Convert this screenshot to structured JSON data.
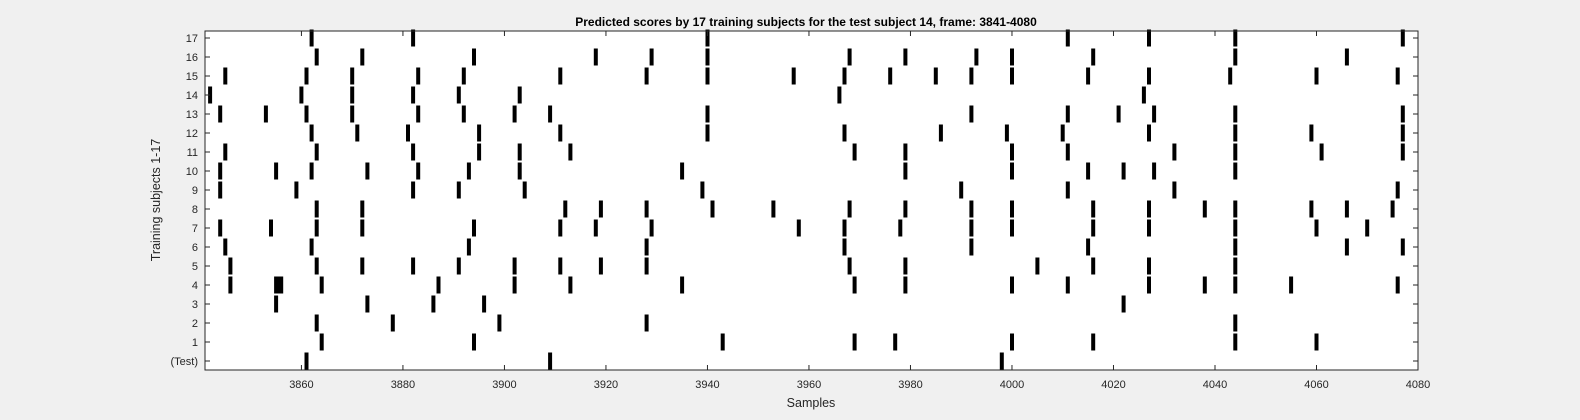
{
  "chart_data": {
    "type": "scatter",
    "marker": "vertical-bar",
    "title": "Predicted scores by 17 training subjects for the test subject 14, frame: 3841-4080",
    "xlabel": "Samples",
    "ylabel": "Training subjects 1-17",
    "xlim": [
      3841,
      4080
    ],
    "xticks": [
      3860,
      3880,
      3900,
      3920,
      3940,
      3960,
      3980,
      4000,
      4020,
      4040,
      4060,
      4080
    ],
    "ytick_labels": [
      "(Test)",
      "1",
      "2",
      "3",
      "4",
      "5",
      "6",
      "7",
      "8",
      "9",
      "10",
      "11",
      "12",
      "13",
      "14",
      "15",
      "16",
      "17"
    ],
    "grid": false,
    "colors": {
      "figure_bg": "#f0f0f0",
      "axes_bg": "#ffffff",
      "mark": "#000000"
    },
    "rows": [
      {
        "row": "(Test)",
        "x": [
          3861,
          3909,
          3998
        ]
      },
      {
        "row": "1",
        "x": [
          3864,
          3894,
          3943,
          3969,
          3977,
          4000,
          4016,
          4044,
          4060
        ]
      },
      {
        "row": "2",
        "x": [
          3863,
          3878,
          3899,
          3928,
          4044
        ]
      },
      {
        "row": "3",
        "x": [
          3855,
          3873,
          3886,
          3896,
          4022
        ]
      },
      {
        "row": "4",
        "x": [
          3846,
          [
            3855,
            3856
          ],
          3864,
          3887,
          3902,
          3913,
          3935,
          3969,
          3979,
          4000,
          4011,
          4027,
          4038,
          4044,
          4055,
          4076
        ]
      },
      {
        "row": "5",
        "x": [
          3846,
          3863,
          3872,
          3882,
          3891,
          3902,
          3911,
          3919,
          3928,
          3968,
          3979,
          4005,
          4016,
          4027,
          4044
        ]
      },
      {
        "row": "6",
        "x": [
          3845,
          3862,
          3893,
          3928,
          3967,
          3992,
          4015,
          4044,
          4066,
          4077
        ]
      },
      {
        "row": "7",
        "x": [
          3844,
          3854,
          3863,
          3872,
          3894,
          3911,
          3918,
          3929,
          3958,
          3967,
          3978,
          3992,
          4000,
          4016,
          4027,
          4044,
          4060,
          4070
        ]
      },
      {
        "row": "8",
        "x": [
          3863,
          3872,
          3912,
          3919,
          3928,
          3941,
          3953,
          3968,
          3979,
          3992,
          4000,
          4016,
          4027,
          4038,
          4044,
          4059,
          4066,
          4075
        ]
      },
      {
        "row": "9",
        "x": [
          3844,
          3859,
          3882,
          3891,
          3904,
          3939,
          3990,
          4011,
          4032,
          4076
        ]
      },
      {
        "row": "10",
        "x": [
          3844,
          3855,
          3862,
          3873,
          3883,
          3893,
          3903,
          3935,
          3979,
          4000,
          4015,
          4022,
          4028,
          4044
        ]
      },
      {
        "row": "11",
        "x": [
          3845,
          3863,
          3882,
          3895,
          3903,
          3913,
          3969,
          3979,
          4000,
          4011,
          4032,
          4044,
          4061,
          4077
        ]
      },
      {
        "row": "12",
        "x": [
          3862,
          3871,
          3881,
          3895,
          3911,
          3940,
          3967,
          3986,
          3999,
          4010,
          4027,
          4044,
          4059,
          4077
        ]
      },
      {
        "row": "13",
        "x": [
          3844,
          3853,
          3861,
          3870,
          3883,
          3892,
          3902,
          3909,
          3940,
          3992,
          4011,
          4021,
          4028,
          4044,
          4077
        ]
      },
      {
        "row": "14",
        "x": [
          3842,
          3860,
          3870,
          3882,
          3891,
          3903,
          3966,
          4026
        ]
      },
      {
        "row": "15",
        "x": [
          3845,
          3861,
          3870,
          3883,
          3892,
          3911,
          3928,
          3940,
          3957,
          3967,
          3976,
          3985,
          3992,
          4000,
          4015,
          4027,
          4043,
          4060,
          4076
        ]
      },
      {
        "row": "16",
        "x": [
          3863,
          3872,
          3894,
          3918,
          3929,
          3940,
          3968,
          3979,
          3993,
          4000,
          4016,
          4044,
          4066
        ]
      },
      {
        "row": "17",
        "x": [
          3862,
          3882,
          3940,
          4011,
          4027,
          4044,
          4077
        ]
      }
    ]
  }
}
